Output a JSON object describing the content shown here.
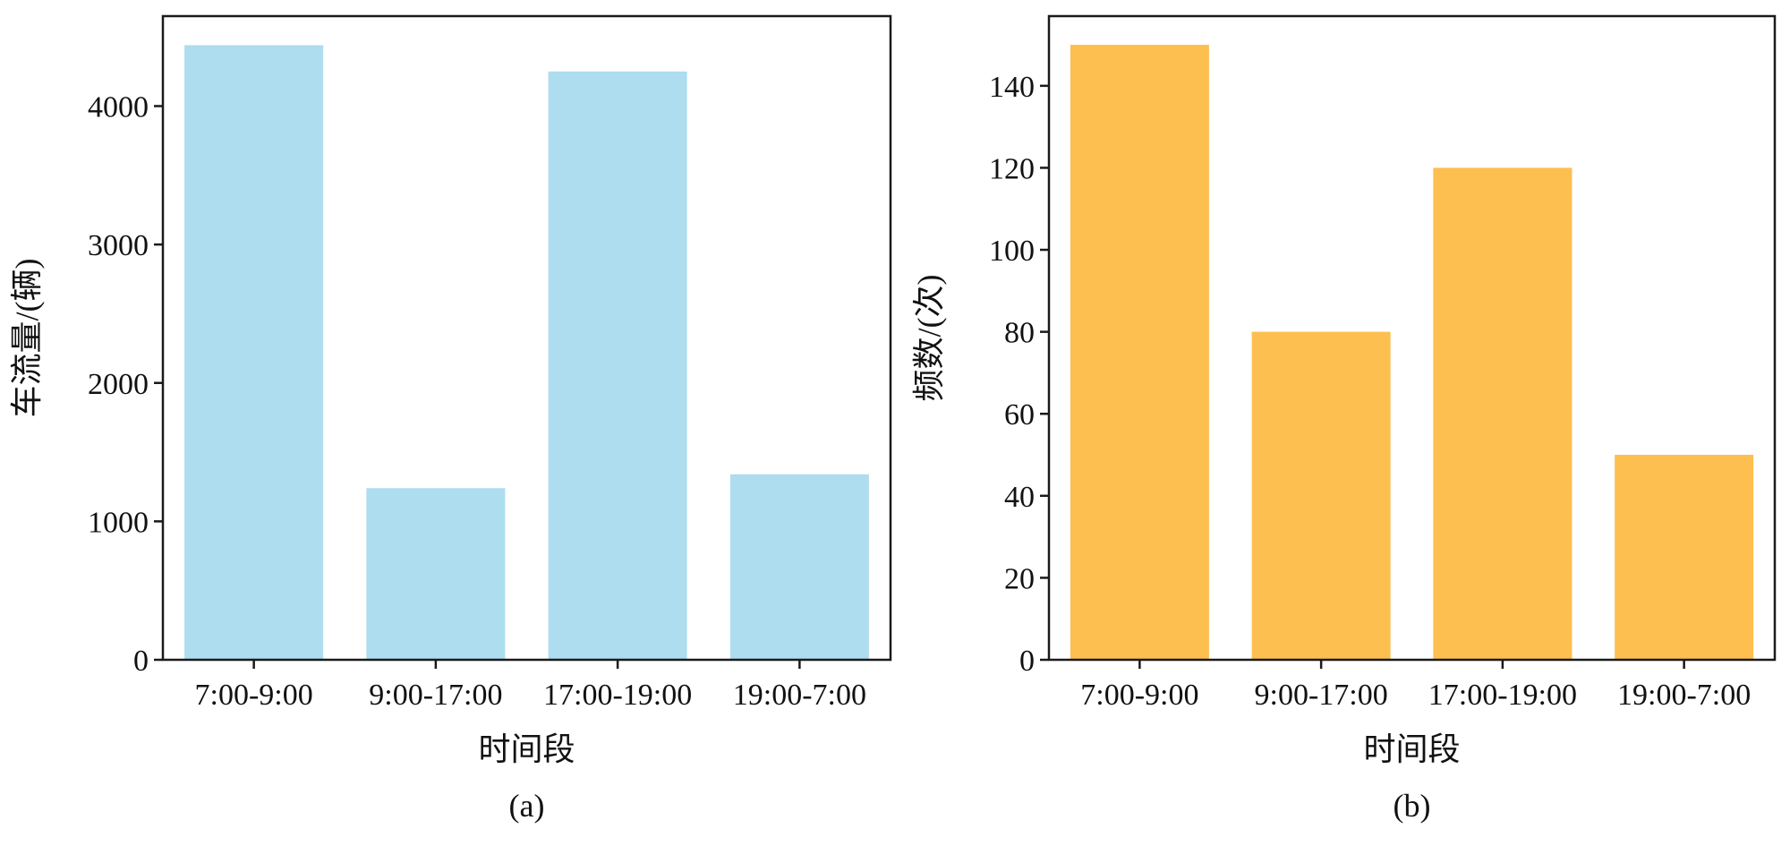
{
  "chart_data": [
    {
      "type": "bar",
      "panel_label": "(a)",
      "categories": [
        "7:00-9:00",
        "9:00-17:00",
        "17:00-19:00",
        "19:00-7:00"
      ],
      "values": [
        4440,
        1240,
        4250,
        1340
      ],
      "xlabel": "时间段",
      "ylabel": "车流量/(辆)",
      "ylim": [
        0,
        4650
      ],
      "yticks": [
        0,
        1000,
        2000,
        3000,
        4000
      ],
      "bar_color": "#ADDDEE",
      "grid": false,
      "legend": "none"
    },
    {
      "type": "bar",
      "panel_label": "(b)",
      "categories": [
        "7:00-9:00",
        "9:00-17:00",
        "17:00-19:00",
        "19:00-7:00"
      ],
      "values": [
        150,
        80,
        120,
        50
      ],
      "xlabel": "时间段",
      "ylabel": "频数/(次)",
      "ylim": [
        0,
        157
      ],
      "yticks": [
        0,
        20,
        40,
        60,
        80,
        100,
        120,
        140
      ],
      "bar_color": "#FDBF4F",
      "grid": false,
      "legend": "none"
    }
  ]
}
